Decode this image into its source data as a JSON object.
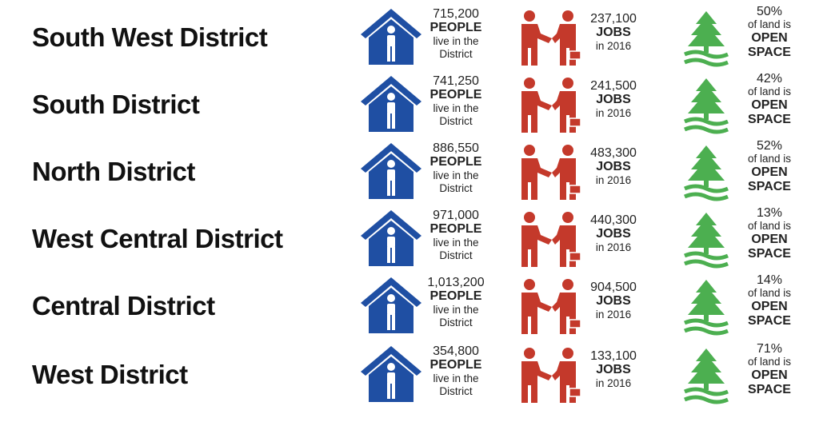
{
  "colors": {
    "house": "#1f4fa3",
    "people": "#c4392b",
    "tree": "#4caf50"
  },
  "icons": {
    "people": "house-person-icon",
    "jobs": "handshake-icon",
    "land": "tree-icon"
  },
  "rows": [
    {
      "name": "South West District",
      "people": {
        "value": "715,200",
        "label": "PEOPLE",
        "line1": "live in the",
        "line2": "District"
      },
      "jobs": {
        "value": "237,100",
        "label": "JOBS",
        "sub": "in 2016"
      },
      "land": {
        "pct": "50%",
        "line1": "of land is",
        "line2": "OPEN",
        "line3": "SPACE"
      }
    },
    {
      "name": "South District",
      "people": {
        "value": "741,250",
        "label": "PEOPLE",
        "line1": "live in the",
        "line2": "District"
      },
      "jobs": {
        "value": "241,500",
        "label": "JOBS",
        "sub": "in 2016"
      },
      "land": {
        "pct": "42%",
        "line1": "of land is",
        "line2": "OPEN",
        "line3": "SPACE"
      }
    },
    {
      "name": "North District",
      "people": {
        "value": "886,550",
        "label": "PEOPLE",
        "line1": "live in the",
        "line2": "District"
      },
      "jobs": {
        "value": "483,300",
        "label": "JOBS",
        "sub": "in 2016"
      },
      "land": {
        "pct": "52%",
        "line1": "of land is",
        "line2": "OPEN",
        "line3": "SPACE"
      }
    },
    {
      "name": "West Central District",
      "people": {
        "value": "971,000",
        "label": "PEOPLE",
        "line1": "live in the",
        "line2": "District"
      },
      "jobs": {
        "value": "440,300",
        "label": "JOBS",
        "sub": "in 2016"
      },
      "land": {
        "pct": "13%",
        "line1": "of land is",
        "line2": "OPEN",
        "line3": "SPACE"
      }
    },
    {
      "name": "Central District",
      "people": {
        "value": "1,013,200",
        "label": "PEOPLE",
        "line1": "live in the",
        "line2": "District"
      },
      "jobs": {
        "value": "904,500",
        "label": "JOBS",
        "sub": "in 2016"
      },
      "land": {
        "pct": "14%",
        "line1": "of land is",
        "line2": "OPEN",
        "line3": "SPACE"
      }
    },
    {
      "name": "West District",
      "people": {
        "value": "354,800",
        "label": "PEOPLE",
        "line1": "live in the",
        "line2": "District"
      },
      "jobs": {
        "value": "133,100",
        "label": "JOBS",
        "sub": "in 2016"
      },
      "land": {
        "pct": "71%",
        "line1": "of land is",
        "line2": "OPEN",
        "line3": "SPACE"
      }
    }
  ]
}
